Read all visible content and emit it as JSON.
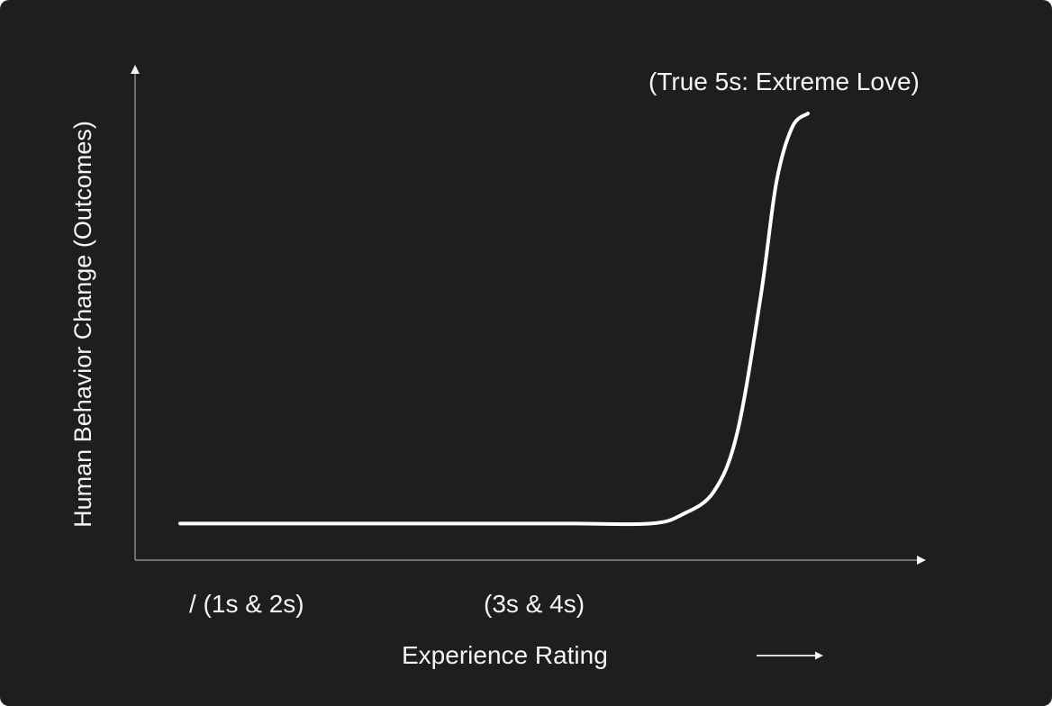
{
  "chart_data": {
    "type": "line",
    "ylabel": "Human Behavior Change (Outcomes)",
    "xlabel": "Experience Rating",
    "tick_labels": [
      "/ (1s & 2s)",
      "(3s & 4s)"
    ],
    "annotation": "(True 5s: Extreme Love)",
    "series": [
      {
        "x": [
          1.0,
          1.5,
          2.0,
          2.5,
          3.0,
          3.5,
          4.0,
          4.2,
          4.4,
          4.55,
          4.7,
          4.8,
          4.9,
          5.0
        ],
        "y": [
          0.1,
          0.1,
          0.1,
          0.1,
          0.1,
          0.1,
          0.1,
          0.12,
          0.17,
          0.3,
          0.6,
          0.85,
          0.97,
          1.0
        ]
      }
    ],
    "grid": false,
    "colors": {
      "background": "#1e1e1e",
      "line": "#ffffff",
      "axis": "#8a8a8a",
      "text": "#f4f4f4"
    }
  }
}
